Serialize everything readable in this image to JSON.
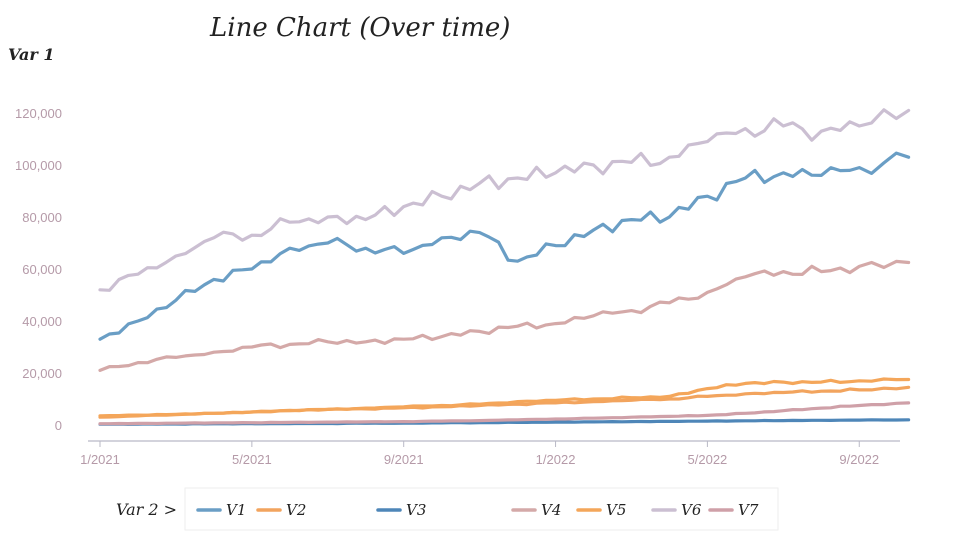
{
  "chart_data": {
    "type": "line",
    "title": "Line Chart (Over time)",
    "ylabel": "Var 1",
    "legend_title": "Var 2 >",
    "legend_position": "bottom",
    "grid": false,
    "ylim": [
      0,
      125000
    ],
    "yticks": [
      "0",
      "20,000",
      "40,000",
      "60,000",
      "80,000",
      "100,000",
      "120,000"
    ],
    "xlim": [
      0,
      21.6
    ],
    "xticks": [
      {
        "label": "1/2021",
        "x": 0
      },
      {
        "label": "5/2021",
        "x": 4
      },
      {
        "label": "9/2021",
        "x": 8
      },
      {
        "label": "1/2022",
        "x": 12
      },
      {
        "label": "5/2022",
        "x": 16
      },
      {
        "label": "9/2022",
        "x": 20
      }
    ],
    "x": [
      0,
      1,
      2,
      3,
      4,
      5,
      6,
      7,
      8,
      9,
      10,
      11,
      12,
      13,
      14,
      15,
      16,
      17,
      18,
      19,
      20,
      21.3
    ],
    "series": [
      {
        "name": "V1",
        "color": "#6a9ec5",
        "values": [
          33000,
          40000,
          48000,
          56000,
          60000,
          68000,
          70000,
          68000,
          66000,
          72000,
          74000,
          63000,
          69000,
          75000,
          79000,
          80000,
          88000,
          95000,
          97000,
          96000,
          99000,
          103000
        ]
      },
      {
        "name": "V2",
        "color": "#f2a45e",
        "values": [
          3000,
          3500,
          4000,
          4500,
          5000,
          5500,
          6000,
          6200,
          6600,
          7000,
          7500,
          8000,
          8500,
          9000,
          9500,
          10000,
          11000,
          12000,
          12500,
          13000,
          13500,
          14500
        ]
      },
      {
        "name": "V3",
        "color": "#4e86b8",
        "values": [
          300,
          350,
          400,
          450,
          500,
          550,
          600,
          650,
          700,
          800,
          900,
          1000,
          1100,
          1200,
          1300,
          1400,
          1500,
          1600,
          1700,
          1800,
          1900,
          2000
        ]
      },
      {
        "name": "V4",
        "color": "#d4a9a8",
        "values": [
          21000,
          24000,
          26000,
          28000,
          30000,
          31000,
          32000,
          32000,
          33000,
          34000,
          36000,
          38000,
          39000,
          42000,
          44000,
          47000,
          51000,
          57000,
          59000,
          59000,
          61000,
          62500
        ]
      },
      {
        "name": "V5",
        "color": "#f4a65a",
        "values": [
          3500,
          3800,
          4100,
          4500,
          5000,
          5600,
          6000,
          6500,
          7000,
          7500,
          8000,
          9000,
          9500,
          10000,
          10500,
          11000,
          14000,
          16000,
          16500,
          16500,
          17000,
          17500
        ]
      },
      {
        "name": "V6",
        "color": "#cbbfd2",
        "values": [
          52000,
          58000,
          65000,
          72000,
          73000,
          78000,
          80000,
          79000,
          84000,
          88000,
          93000,
          95000,
          97000,
          100000,
          101000,
          103000,
          109000,
          114000,
          115000,
          113000,
          115000,
          121000
        ]
      },
      {
        "name": "V7",
        "color": "#cfa0a8",
        "values": [
          500,
          600,
          700,
          800,
          900,
          1000,
          1100,
          1200,
          1300,
          1500,
          1700,
          2000,
          2300,
          2600,
          3000,
          3300,
          3700,
          4500,
          5500,
          6500,
          7500,
          8500
        ]
      }
    ]
  }
}
